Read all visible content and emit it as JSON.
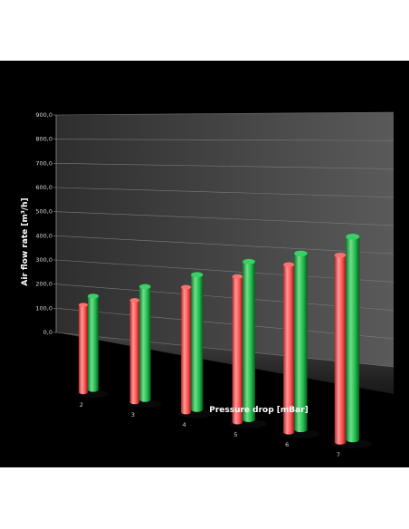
{
  "chart_data": {
    "type": "bar",
    "title": "",
    "xlabel": "Pressure drop [mBar]",
    "ylabel": "Air flow rate [m³/h]",
    "categories": [
      "2",
      "3",
      "4",
      "5",
      "6",
      "7"
    ],
    "series": [
      {
        "values": [
          360,
          420,
          515,
          600,
          690,
          770
        ],
        "color": "#ff4b4b"
      },
      {
        "values": [
          385,
          465,
          555,
          650,
          725,
          835
        ],
        "color": "#1fb84a"
      }
    ],
    "yticks": [
      "0,0",
      "100,0",
      "200,0",
      "300,0",
      "400,0",
      "500,0",
      "600,0",
      "700,0",
      "800,0",
      "900,0"
    ],
    "ylim": [
      0,
      900
    ],
    "grid": true,
    "legend": "none",
    "style": "3d-cylinder"
  }
}
